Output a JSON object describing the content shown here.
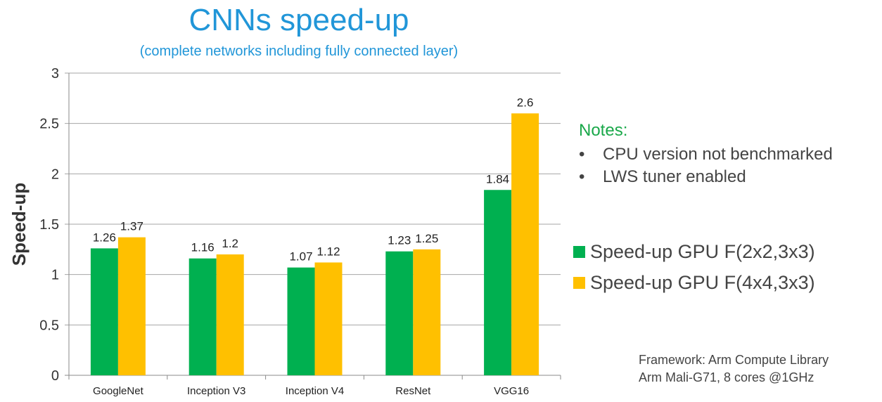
{
  "chart_data": {
    "type": "bar",
    "title": "CNNs speed-up",
    "subtitle": "(complete networks including fully connected layer)",
    "ylabel": "Speed-up",
    "xlabel": "",
    "categories": [
      "GoogleNet",
      "Inception V3",
      "Inception V4",
      "ResNet",
      "VGG16"
    ],
    "series": [
      {
        "name": "Speed-up GPU F(2x2,3x3)",
        "color": "#00b050",
        "values": [
          1.26,
          1.16,
          1.07,
          1.23,
          1.84
        ],
        "labels": [
          "1.26",
          "1.16",
          "1.07",
          "1.23",
          "1.84"
        ]
      },
      {
        "name": "Speed-up GPU F(4x4,3x3)",
        "color": "#ffc000",
        "values": [
          1.37,
          1.2,
          1.12,
          1.25,
          2.6
        ],
        "labels": [
          "1.37",
          "1.2",
          "1.12",
          "1.25",
          "2.6"
        ]
      }
    ],
    "ylim": [
      0,
      3
    ],
    "yticks": [
      "0",
      "0.5",
      "1",
      "1.5",
      "2",
      "2.5",
      "3"
    ],
    "grid": true,
    "legend_position": "right"
  },
  "notes": {
    "title": "Notes:",
    "items": [
      "CPU version not benchmarked",
      "LWS tuner enabled"
    ]
  },
  "footer": {
    "line1": "Framework: Arm Compute Library",
    "line2": "Arm Mali-G71, 8 cores @1GHz"
  },
  "colors": {
    "title": "#2196d8",
    "notes_title": "#1aa84a"
  }
}
